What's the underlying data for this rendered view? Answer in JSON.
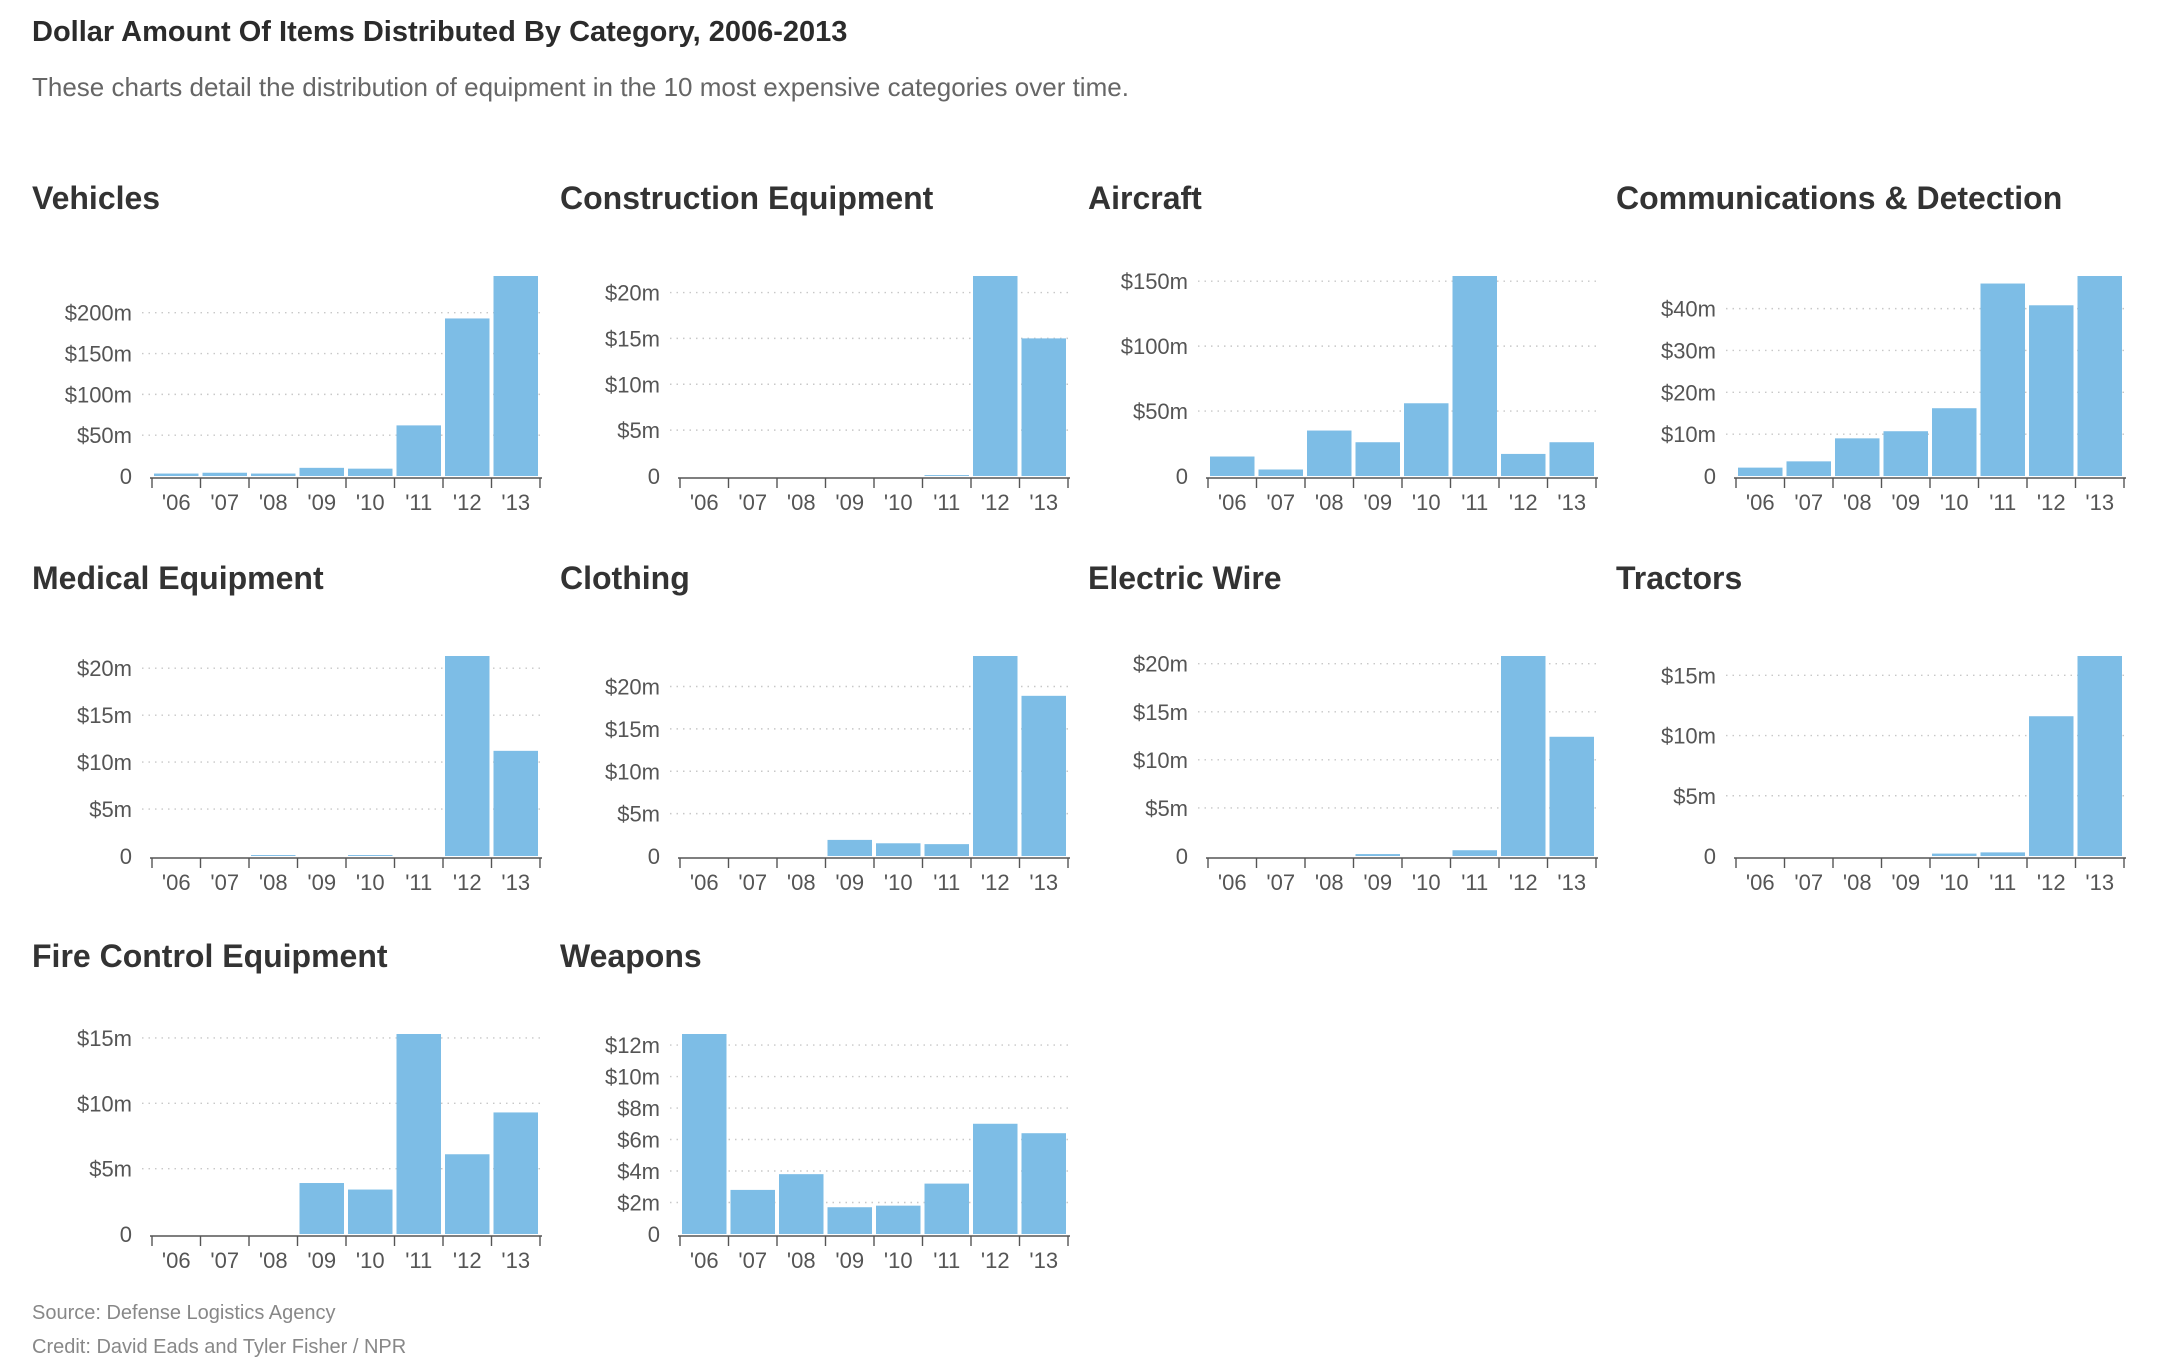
{
  "header": {
    "title": "Dollar Amount Of Items Distributed By Category, 2006-2013",
    "subtitle": "These charts detail the distribution of equipment in the 10 most expensive categories over time."
  },
  "footer": {
    "source": "Source: Defense Logistics Agency",
    "credit": "Credit: David Eads and Tyler Fisher / NPR"
  },
  "colors": {
    "bar": "#7dbde6",
    "text": "#333333",
    "axis": "#555555"
  },
  "chart_data": [
    {
      "type": "bar",
      "title": "Vehicles",
      "categories": [
        "'06",
        "'07",
        "'08",
        "'09",
        "'10",
        "'11",
        "'12",
        "'13"
      ],
      "values": [
        3,
        4,
        3,
        10,
        9,
        62,
        193,
        245
      ],
      "ylim": [
        0,
        245
      ],
      "yticks": [
        0,
        50,
        100,
        150,
        200
      ],
      "ytick_labels": [
        "0",
        "$50m",
        "$100m",
        "$150m",
        "$200m"
      ],
      "grid": true
    },
    {
      "type": "bar",
      "title": "Construction Equipment",
      "categories": [
        "'06",
        "'07",
        "'08",
        "'09",
        "'10",
        "'11",
        "'12",
        "'13"
      ],
      "values": [
        0,
        0,
        0,
        0,
        0,
        0.1,
        21.8,
        15
      ],
      "ylim": [
        0,
        21.8
      ],
      "yticks": [
        0,
        5,
        10,
        15,
        20
      ],
      "ytick_labels": [
        "0",
        "$5m",
        "$10m",
        "$15m",
        "$20m"
      ],
      "grid": true
    },
    {
      "type": "bar",
      "title": "Aircraft",
      "categories": [
        "'06",
        "'07",
        "'08",
        "'09",
        "'10",
        "'11",
        "'12",
        "'13"
      ],
      "values": [
        15,
        5,
        35,
        26,
        56,
        154,
        17,
        26
      ],
      "ylim": [
        0,
        154
      ],
      "yticks": [
        0,
        50,
        100,
        150
      ],
      "ytick_labels": [
        "0",
        "$50m",
        "$100m",
        "$150m"
      ],
      "grid": true
    },
    {
      "type": "bar",
      "title": "Communications & Detection",
      "categories": [
        "'06",
        "'07",
        "'08",
        "'09",
        "'10",
        "'11",
        "'12",
        "'13"
      ],
      "values": [
        2,
        3.5,
        9,
        10.7,
        16.2,
        46,
        40.8,
        47.8
      ],
      "ylim": [
        0,
        47.8
      ],
      "yticks": [
        0,
        10,
        20,
        30,
        40
      ],
      "ytick_labels": [
        "0",
        "$10m",
        "$20m",
        "$30m",
        "$40m"
      ],
      "grid": true
    },
    {
      "type": "bar",
      "title": "Medical Equipment",
      "categories": [
        "'06",
        "'07",
        "'08",
        "'09",
        "'10",
        "'11",
        "'12",
        "'13"
      ],
      "values": [
        0,
        0,
        0.1,
        0,
        0.1,
        0,
        21.3,
        11.2
      ],
      "ylim": [
        0,
        21.3
      ],
      "yticks": [
        0,
        5,
        10,
        15,
        20
      ],
      "ytick_labels": [
        "0",
        "$5m",
        "$10m",
        "$15m",
        "$20m"
      ],
      "grid": true
    },
    {
      "type": "bar",
      "title": "Clothing",
      "categories": [
        "'06",
        "'07",
        "'08",
        "'09",
        "'10",
        "'11",
        "'12",
        "'13"
      ],
      "values": [
        0,
        0,
        0,
        1.9,
        1.5,
        1.4,
        23.6,
        18.9
      ],
      "ylim": [
        0,
        23.6
      ],
      "yticks": [
        0,
        5,
        10,
        15,
        20
      ],
      "ytick_labels": [
        "0",
        "$5m",
        "$10m",
        "$15m",
        "$20m"
      ],
      "grid": true
    },
    {
      "type": "bar",
      "title": "Electric Wire",
      "categories": [
        "'06",
        "'07",
        "'08",
        "'09",
        "'10",
        "'11",
        "'12",
        "'13"
      ],
      "values": [
        0,
        0,
        0,
        0.2,
        0,
        0.6,
        20.8,
        12.4
      ],
      "ylim": [
        0,
        20.8
      ],
      "yticks": [
        0,
        5,
        10,
        15,
        20
      ],
      "ytick_labels": [
        "0",
        "$5m",
        "$10m",
        "$15m",
        "$20m"
      ],
      "grid": true
    },
    {
      "type": "bar",
      "title": "Tractors",
      "categories": [
        "'06",
        "'07",
        "'08",
        "'09",
        "'10",
        "'11",
        "'12",
        "'13"
      ],
      "values": [
        0,
        0,
        0,
        0,
        0.2,
        0.3,
        11.6,
        16.6
      ],
      "ylim": [
        0,
        16.6
      ],
      "yticks": [
        0,
        5,
        10,
        15
      ],
      "ytick_labels": [
        "0",
        "$5m",
        "$10m",
        "$15m"
      ],
      "grid": true
    },
    {
      "type": "bar",
      "title": "Fire Control Equipment",
      "categories": [
        "'06",
        "'07",
        "'08",
        "'09",
        "'10",
        "'11",
        "'12",
        "'13"
      ],
      "values": [
        0,
        0,
        0,
        3.9,
        3.4,
        15.3,
        6.1,
        9.3
      ],
      "ylim": [
        0,
        15.3
      ],
      "yticks": [
        0,
        5,
        10,
        15
      ],
      "ytick_labels": [
        "0",
        "$5m",
        "$10m",
        "$15m"
      ],
      "grid": true
    },
    {
      "type": "bar",
      "title": "Weapons",
      "categories": [
        "'06",
        "'07",
        "'08",
        "'09",
        "'10",
        "'11",
        "'12",
        "'13"
      ],
      "values": [
        12.7,
        2.8,
        3.8,
        1.7,
        1.8,
        3.2,
        7,
        6.4
      ],
      "ylim": [
        0,
        12.7
      ],
      "yticks": [
        0,
        2,
        4,
        6,
        8,
        10,
        12
      ],
      "ytick_labels": [
        "0",
        "$2m",
        "$4m",
        "$6m",
        "$8m",
        "$10m",
        "$12m"
      ],
      "grid": true
    }
  ]
}
